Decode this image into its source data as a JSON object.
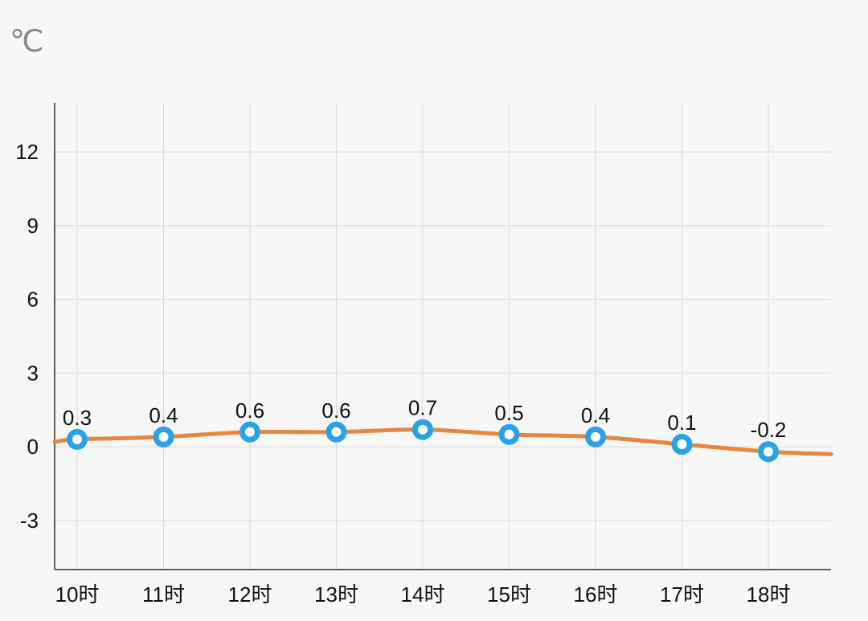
{
  "chart_data": {
    "type": "line",
    "unit": "℃",
    "categories": [
      "10时",
      "11时",
      "12时",
      "13时",
      "14时",
      "15时",
      "16时",
      "17时",
      "18时"
    ],
    "values": [
      0.3,
      0.4,
      0.6,
      0.6,
      0.7,
      0.5,
      0.4,
      0.1,
      -0.2
    ],
    "value_labels": [
      "0.3",
      "0.4",
      "0.6",
      "0.6",
      "0.7",
      "0.5",
      "0.4",
      "0.1",
      "-0.2"
    ],
    "line_start_value": 0.2,
    "line_end_value": -0.3,
    "ylim": [
      -5,
      14
    ],
    "yticks": [
      -3,
      0,
      3,
      6,
      9,
      12
    ],
    "ytick_labels": [
      "-3",
      "0",
      "3",
      "6",
      "9",
      "12"
    ],
    "grid": true,
    "colors": {
      "line": "#e8853f",
      "marker": "#29a3e6",
      "marker_center": "#ffffff",
      "grid": "#d9d9d9",
      "axis": "#333333"
    }
  }
}
